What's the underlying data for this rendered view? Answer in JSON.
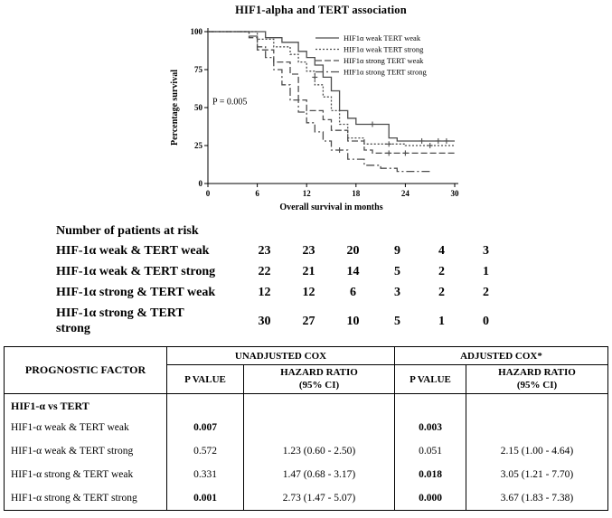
{
  "chart_data": {
    "type": "line",
    "subtype": "kaplan-meier-step",
    "title": "HIF1-alpha and TERT association",
    "xlabel": "Overall survival in months",
    "ylabel": "Percentage survival",
    "xlim": [
      0,
      30
    ],
    "ylim": [
      0,
      100
    ],
    "xticks": [
      0,
      6,
      12,
      18,
      24,
      30
    ],
    "yticks": [
      0,
      25,
      50,
      75,
      100
    ],
    "grid": false,
    "legend_position": "top-right",
    "annotation": "P = 0.005",
    "line_color": "#4d4d4d",
    "series": [
      {
        "name": "HIF1α weak TERT weak",
        "line_style": "solid",
        "dash": "",
        "points": [
          [
            0,
            100
          ],
          [
            7,
            100
          ],
          [
            7,
            96
          ],
          [
            9,
            96
          ],
          [
            9,
            93
          ],
          [
            11,
            93
          ],
          [
            11,
            87
          ],
          [
            12,
            87
          ],
          [
            12,
            83
          ],
          [
            13,
            83
          ],
          [
            13,
            78
          ],
          [
            14,
            78
          ],
          [
            14,
            70
          ],
          [
            15,
            70
          ],
          [
            15,
            61
          ],
          [
            16,
            61
          ],
          [
            16,
            48
          ],
          [
            17,
            48
          ],
          [
            17,
            43
          ],
          [
            18,
            43
          ],
          [
            18,
            39
          ],
          [
            22,
            39
          ],
          [
            22,
            30
          ],
          [
            23,
            30
          ],
          [
            23,
            28
          ],
          [
            30,
            28
          ]
        ],
        "censors": [
          [
            20,
            39
          ],
          [
            26,
            28
          ],
          [
            28,
            28
          ],
          [
            29,
            28
          ]
        ]
      },
      {
        "name": "HIF1α weak TERT strong",
        "line_style": "dotted",
        "dash": "2,2",
        "points": [
          [
            0,
            100
          ],
          [
            6,
            100
          ],
          [
            6,
            95
          ],
          [
            8,
            95
          ],
          [
            8,
            90
          ],
          [
            10,
            90
          ],
          [
            10,
            85
          ],
          [
            11,
            85
          ],
          [
            11,
            80
          ],
          [
            12,
            80
          ],
          [
            12,
            74
          ],
          [
            13,
            74
          ],
          [
            13,
            65
          ],
          [
            14,
            65
          ],
          [
            14,
            57
          ],
          [
            15,
            57
          ],
          [
            15,
            48
          ],
          [
            16,
            48
          ],
          [
            16,
            39
          ],
          [
            17,
            39
          ],
          [
            17,
            30
          ],
          [
            19,
            30
          ],
          [
            19,
            26
          ],
          [
            24,
            26
          ],
          [
            24,
            25
          ],
          [
            30,
            25
          ]
        ],
        "censors": [
          [
            13,
            70
          ],
          [
            22,
            26
          ],
          [
            27,
            25
          ]
        ]
      },
      {
        "name": "HIF1α strong TERT weak",
        "line_style": "dashed",
        "dash": "7,3",
        "points": [
          [
            0,
            100
          ],
          [
            5,
            100
          ],
          [
            5,
            96
          ],
          [
            6,
            96
          ],
          [
            6,
            88
          ],
          [
            8,
            88
          ],
          [
            8,
            80
          ],
          [
            10,
            80
          ],
          [
            10,
            72
          ],
          [
            11,
            72
          ],
          [
            11,
            55
          ],
          [
            12,
            55
          ],
          [
            12,
            48
          ],
          [
            14,
            48
          ],
          [
            14,
            42
          ],
          [
            15,
            42
          ],
          [
            15,
            35
          ],
          [
            17,
            35
          ],
          [
            17,
            28
          ],
          [
            19,
            28
          ],
          [
            19,
            22
          ],
          [
            20,
            22
          ],
          [
            20,
            20
          ],
          [
            30,
            20
          ]
        ],
        "censors": [
          [
            22,
            20
          ],
          [
            24,
            20
          ]
        ]
      },
      {
        "name": "HIF1α strong TERT strong",
        "line_style": "dash-dot",
        "dash": "9,3,2,3",
        "points": [
          [
            0,
            100
          ],
          [
            5,
            100
          ],
          [
            5,
            97
          ],
          [
            6,
            97
          ],
          [
            6,
            90
          ],
          [
            7,
            90
          ],
          [
            7,
            83
          ],
          [
            8,
            83
          ],
          [
            8,
            75
          ],
          [
            9,
            75
          ],
          [
            9,
            65
          ],
          [
            10,
            65
          ],
          [
            10,
            55
          ],
          [
            11,
            55
          ],
          [
            11,
            47
          ],
          [
            12,
            47
          ],
          [
            12,
            40
          ],
          [
            13,
            40
          ],
          [
            13,
            34
          ],
          [
            14,
            34
          ],
          [
            14,
            28
          ],
          [
            15,
            28
          ],
          [
            15,
            22
          ],
          [
            17,
            22
          ],
          [
            17,
            16
          ],
          [
            19,
            16
          ],
          [
            19,
            12
          ],
          [
            21,
            12
          ],
          [
            21,
            10
          ],
          [
            23,
            10
          ],
          [
            23,
            8
          ],
          [
            27,
            8
          ]
        ],
        "censors": [
          [
            16,
            22
          ]
        ]
      }
    ]
  },
  "risk_table": {
    "title": "Number of patients at risk",
    "rows": [
      {
        "label": "HIF-1α weak & TERT weak",
        "counts": [
          23,
          23,
          20,
          9,
          4,
          3
        ]
      },
      {
        "label": "HIF-1α weak & TERT strong",
        "counts": [
          22,
          21,
          14,
          5,
          2,
          1
        ]
      },
      {
        "label": "HIF-1α strong & TERT weak",
        "counts": [
          12,
          12,
          6,
          3,
          2,
          2
        ]
      },
      {
        "label": "HIF-1α strong & TERT strong",
        "counts": [
          30,
          27,
          10,
          5,
          1,
          0
        ]
      }
    ]
  },
  "cox_table": {
    "col1_header": "PROGNOSTIC FACTOR",
    "group_headers": [
      "UNADJUSTED COX",
      "ADJUSTED COX*"
    ],
    "sub_headers": [
      "P VALUE",
      "HAZARD RATIO\n(95% CI)",
      "P VALUE",
      "HAZARD RATIO\n(95% CI)"
    ],
    "section_header": "HIF1-α vs TERT",
    "rows": [
      {
        "label": "HIF1-α weak & TERT weak",
        "unadj_p": "0.007",
        "unadj_hr": "",
        "adj_p": "0.003",
        "adj_hr": ""
      },
      {
        "label": "HIF1-α weak & TERT strong",
        "unadj_p": "0.572",
        "unadj_hr": "1.23 (0.60 - 2.50)",
        "adj_p": "0.051",
        "adj_hr": "2.15 (1.00 - 4.64)"
      },
      {
        "label": "HIF1-α strong & TERT weak",
        "unadj_p": "0.331",
        "unadj_hr": "1.47 (0.68 - 3.17)",
        "adj_p": "0.018",
        "adj_hr": "3.05 (1.21 - 7.70)"
      },
      {
        "label": "HIF1-α strong & TERT strong",
        "unadj_p": "0.001",
        "unadj_hr": "2.73 (1.47 - 5.07)",
        "adj_p": "0.000",
        "adj_hr": "3.67 (1.83 - 7.38)"
      }
    ]
  }
}
